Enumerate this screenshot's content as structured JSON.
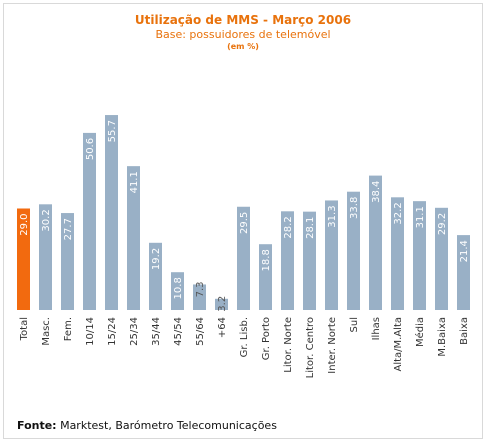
{
  "chart_data": {
    "type": "bar",
    "title": "Utilização de MMS - Março 2006",
    "subtitle": "Base: possuidores de telemóvel",
    "unit_note": "(em %)",
    "categories": [
      "Total",
      "Masc.",
      "Fem.",
      "10/14",
      "15/24",
      "25/34",
      "35/44",
      "45/54",
      "55/64",
      "+64",
      "Gr. Lisb.",
      "Gr. Porto",
      "Litor. Norte",
      "Litor. Centro",
      "Inter. Norte",
      "Sul",
      "Ilhas",
      "Alta/M.Alta",
      "Média",
      "M.Baixa",
      "Baixa"
    ],
    "values": [
      29.0,
      30.2,
      27.7,
      50.6,
      55.7,
      41.1,
      19.2,
      10.8,
      7.3,
      3.2,
      29.5,
      18.8,
      28.2,
      28.1,
      31.3,
      33.8,
      38.4,
      32.2,
      31.1,
      29.2,
      21.4
    ],
    "value_labels": [
      "29.0",
      "30.2",
      "27.7",
      "50.6",
      "55.7",
      "41.1",
      "19.2",
      "10.8",
      "7.3",
      "3.2",
      "29.5",
      "18.8",
      "28.2",
      "28.1",
      "31.3",
      "33.8",
      "38.4",
      "32.2",
      "31.1",
      "29.2",
      "21.4"
    ],
    "ylim": [
      0,
      60
    ],
    "grid": false,
    "colors": {
      "highlight": "#f26a0f",
      "bar": "#99b0c6",
      "label_on_bar": "#ffffff",
      "label_above": "#555555"
    }
  },
  "source": {
    "label": "Fonte:",
    "text": "Marktest, Barómetro Telecomunicações"
  }
}
